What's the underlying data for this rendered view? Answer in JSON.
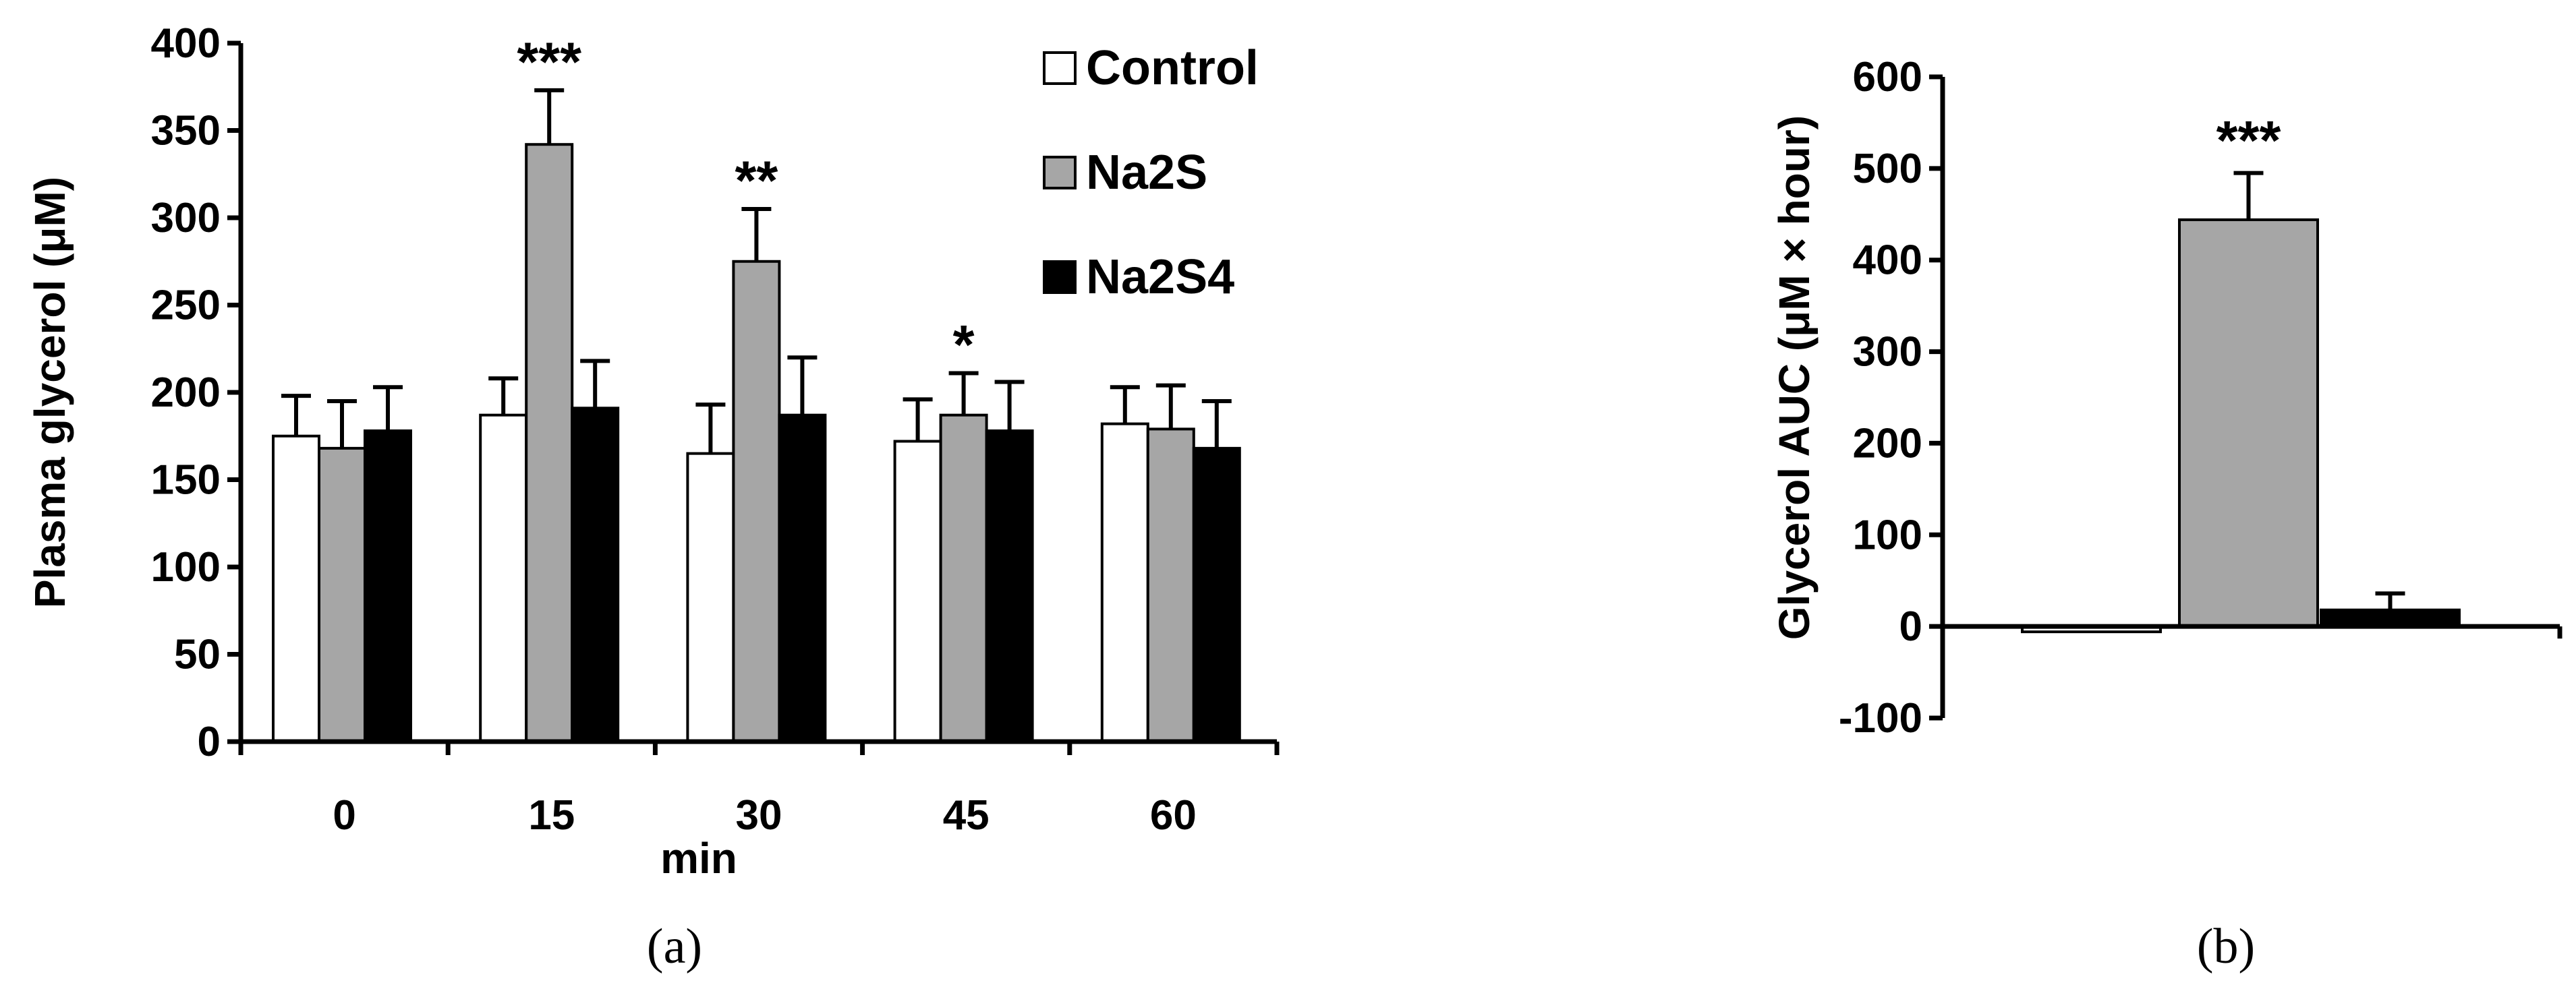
{
  "chart_data": [
    {
      "id": "a",
      "type": "bar",
      "panel_label": "(a)",
      "xlabel": "min",
      "ylabel": "Plasma glycerol (μM)",
      "ylim": [
        0,
        400
      ],
      "yticks": [
        0,
        50,
        100,
        150,
        200,
        250,
        300,
        350,
        400
      ],
      "categories": [
        "0",
        "15",
        "30",
        "45",
        "60"
      ],
      "legend_position": "top-right",
      "series": [
        {
          "name": "Control",
          "color": "#ffffff",
          "values": [
            175,
            187,
            165,
            172,
            182
          ],
          "errors": [
            23,
            21,
            28,
            24,
            21
          ]
        },
        {
          "name": "Na2S",
          "color": "#a6a6a6",
          "values": [
            168,
            342,
            275,
            187,
            179
          ],
          "errors": [
            27,
            31,
            30,
            24,
            25
          ]
        },
        {
          "name": "Na2S4",
          "color": "#000000",
          "values": [
            178,
            191,
            187,
            178,
            168
          ],
          "errors": [
            25,
            27,
            33,
            28,
            27
          ]
        }
      ],
      "annotations": [
        {
          "category": "15",
          "text": "***"
        },
        {
          "category": "30",
          "text": "**"
        },
        {
          "category": "45",
          "text": "*"
        }
      ]
    },
    {
      "id": "b",
      "type": "bar",
      "panel_label": "(b)",
      "xlabel": "",
      "ylabel": "Glycerol AUC (μM × hour)",
      "ylim": [
        -100,
        600
      ],
      "yticks": [
        -100,
        0,
        100,
        200,
        300,
        400,
        500,
        600
      ],
      "categories": [
        "Control",
        "Na2S",
        "Na2S4"
      ],
      "values": [
        -5,
        444,
        18
      ],
      "errors": [
        0,
        51,
        18
      ],
      "colors": [
        "#ffffff",
        "#a6a6a6",
        "#000000"
      ],
      "annotations": [
        {
          "index": 1,
          "text": "***"
        }
      ]
    }
  ]
}
